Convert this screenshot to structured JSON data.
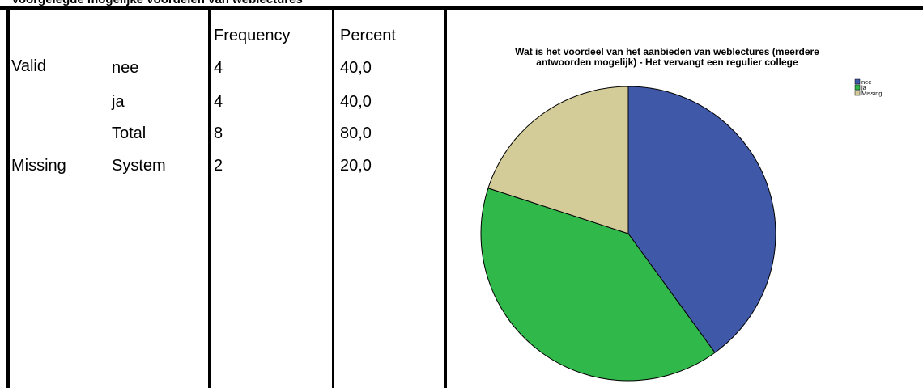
{
  "page_title": "Voorgelegde mogelijke voordelen van weblectures",
  "table": {
    "headers": [
      "",
      "",
      "Frequency",
      "Percent"
    ],
    "rows": [
      {
        "group": "Valid",
        "category": "nee",
        "frequency": "4",
        "percent": "40,0"
      },
      {
        "group": "",
        "category": "ja",
        "frequency": "4",
        "percent": "40,0"
      },
      {
        "group": "",
        "category": "Total",
        "frequency": "8",
        "percent": "80,0"
      },
      {
        "group": "Missing",
        "category": "System",
        "frequency": "2",
        "percent": "20,0"
      }
    ]
  },
  "chart_data": {
    "type": "pie",
    "title_lines": [
      "Wat is het voordeel van het aanbieden van weblectures (meerdere",
      "antwoorden mogelijk) - Het vervangt een regulier college"
    ],
    "categories": [
      "nee",
      "ja",
      "Missing"
    ],
    "values": [
      4,
      4,
      2
    ],
    "colors": [
      "#3f58a8",
      "#31b84b",
      "#d3cc98"
    ],
    "legend_position": "top-right"
  }
}
